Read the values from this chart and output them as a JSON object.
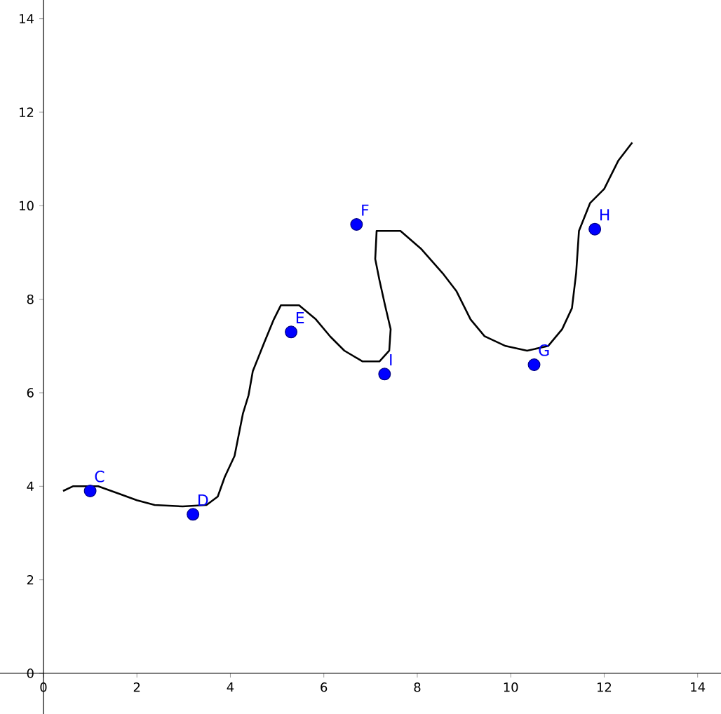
{
  "chart_data": {
    "type": "line",
    "xlim": [
      -0.93,
      14.5
    ],
    "ylim": [
      -0.87,
      14.4
    ],
    "xticks": [
      0,
      2,
      4,
      6,
      8,
      10,
      12,
      14
    ],
    "yticks": [
      0,
      2,
      4,
      6,
      8,
      10,
      12,
      14
    ],
    "grid": false,
    "series": [
      {
        "color": "#000000",
        "marker": "none",
        "line_style": "solid",
        "x": [
          0.42,
          0.63,
          1.17,
          1.62,
          2.0,
          2.38,
          2.98,
          3.49,
          3.73,
          3.88,
          4.09,
          4.27,
          4.39,
          4.48,
          4.72,
          4.93,
          5.08,
          5.47,
          5.83,
          6.14,
          6.44,
          6.83,
          7.19,
          7.4,
          7.43,
          7.31,
          7.19,
          7.1,
          7.13,
          7.64,
          8.09,
          8.54,
          8.84,
          9.14,
          9.44,
          9.89,
          10.35,
          10.8,
          11.1,
          11.31,
          11.4,
          11.46,
          11.7,
          12.0,
          12.3,
          12.6
        ],
        "values": [
          3.9,
          4.0,
          4.0,
          3.84,
          3.7,
          3.6,
          3.57,
          3.6,
          3.78,
          4.2,
          4.65,
          5.56,
          5.95,
          6.46,
          7.06,
          7.57,
          7.87,
          7.87,
          7.57,
          7.2,
          6.9,
          6.67,
          6.67,
          6.9,
          7.36,
          7.87,
          8.41,
          8.86,
          9.46,
          9.46,
          9.07,
          8.56,
          8.17,
          7.57,
          7.21,
          7.0,
          6.9,
          7.0,
          7.36,
          7.81,
          8.56,
          9.46,
          10.06,
          10.36,
          10.96,
          11.35
        ]
      },
      {
        "type": "scatter",
        "color": "#0000ff",
        "marker": "circle",
        "x": [
          1.0,
          3.2,
          5.3,
          6.7,
          10.5,
          11.8,
          7.3
        ],
        "values": [
          3.9,
          3.4,
          7.3,
          9.6,
          6.6,
          9.5,
          6.4
        ]
      }
    ],
    "annotations": [
      {
        "text": "C",
        "x": 1.0,
        "y": 3.9
      },
      {
        "text": "D",
        "x": 3.2,
        "y": 3.4
      },
      {
        "text": "E",
        "x": 5.3,
        "y": 7.3
      },
      {
        "text": "F",
        "x": 6.7,
        "y": 9.6
      },
      {
        "text": "G",
        "x": 10.5,
        "y": 6.6
      },
      {
        "text": "H",
        "x": 11.8,
        "y": 9.5
      },
      {
        "text": "I",
        "x": 7.3,
        "y": 6.4
      }
    ]
  }
}
